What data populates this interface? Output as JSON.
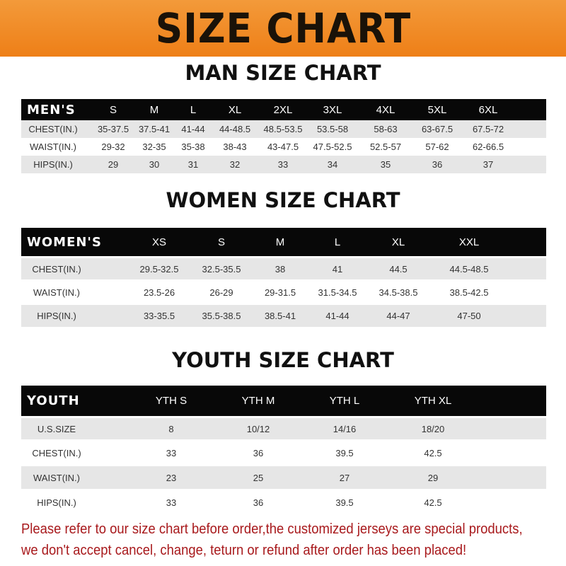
{
  "banner_title": "SIZE CHART",
  "men": {
    "title": "MAN SIZE CHART",
    "header": [
      "MEN'S",
      "S",
      "M",
      "L",
      "XL",
      "2XL",
      "3XL",
      "4XL",
      "5XL",
      "6XL"
    ],
    "rows": [
      [
        "CHEST(IN.)",
        "35-37.5",
        "37.5-41",
        "41-44",
        "44-48.5",
        "48.5-53.5",
        "53.5-58",
        "58-63",
        "63-67.5",
        "67.5-72"
      ],
      [
        "WAIST(IN.)",
        "29-32",
        "32-35",
        "35-38",
        "38-43",
        "43-47.5",
        "47.5-52.5",
        "52.5-57",
        "57-62",
        "62-66.5"
      ],
      [
        "HIPS(IN.)",
        "29",
        "30",
        "31",
        "32",
        "33",
        "34",
        "35",
        "36",
        "37"
      ]
    ]
  },
  "women": {
    "title": "WOMEN SIZE CHART",
    "header": [
      "WOMEN'S",
      "XS",
      "S",
      "M",
      "L",
      "XL",
      "XXL"
    ],
    "rows": [
      [
        "CHEST(IN.)",
        "29.5-32.5",
        "32.5-35.5",
        "38",
        "41",
        "44.5",
        "44.5-48.5"
      ],
      [
        "WAIST(IN.)",
        "23.5-26",
        "26-29",
        "29-31.5",
        "31.5-34.5",
        "34.5-38.5",
        "38.5-42.5"
      ],
      [
        "HIPS(IN.)",
        "33-35.5",
        "35.5-38.5",
        "38.5-41",
        "41-44",
        "44-47",
        "47-50"
      ]
    ]
  },
  "youth": {
    "title": "YOUTH SIZE CHART",
    "header": [
      "YOUTH",
      "YTH S",
      "YTH M",
      "YTH L",
      "YTH XL"
    ],
    "rows": [
      [
        "U.S.SIZE",
        "8",
        "10/12",
        "14/16",
        "18/20"
      ],
      [
        "CHEST(IN.)",
        "33",
        "36",
        "39.5",
        "42.5"
      ],
      [
        "WAIST(IN.)",
        "23",
        "25",
        "27",
        "29"
      ],
      [
        "HIPS(IN.)",
        "33",
        "36",
        "39.5",
        "42.5"
      ]
    ]
  },
  "notice": {
    "line1": "Please refer to our size chart before order,the customized jerseys are special products,",
    "line2": "we don't accept cancel, change, teturn or refund after order has been placed!"
  },
  "colors": {
    "banner": "#ee7f17",
    "header_row": "#080808",
    "stripe": "#e6e6e6",
    "notice": "#a8191c"
  }
}
